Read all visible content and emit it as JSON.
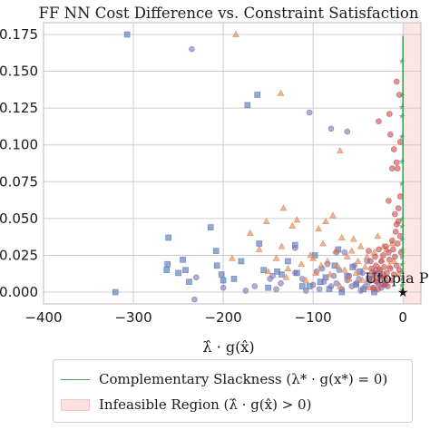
{
  "chart_data": {
    "type": "scatter",
    "title": "FF NN Cost Difference vs. Constraint Satisfaction",
    "xlabel": "λ̂ · g(x̂)",
    "ylabel": "",
    "xlim": [
      -400,
      20
    ],
    "ylim": [
      -0.008,
      0.183
    ],
    "x_ticks": [
      -400,
      -300,
      -200,
      -100,
      0
    ],
    "x_tick_labels": [
      "−400",
      "−300",
      "−200",
      "−100",
      "0"
    ],
    "y_ticks": [
      0.0,
      0.025,
      0.05,
      0.075,
      0.1,
      0.125,
      0.15,
      0.175
    ],
    "y_tick_labels": [
      "0.000",
      "0.025",
      "0.050",
      "0.075",
      "0.100",
      "0.125",
      "0.150",
      "0.175"
    ],
    "grid": true,
    "legend_position": "below",
    "colors": {
      "blue": "#4c72b0",
      "orange": "#dd8452",
      "red": "#c44e52",
      "purple": "#8172b3",
      "green": "#55a868",
      "line": "#4a9a5a",
      "region": "#fde0e0"
    },
    "complementary_slackness_line": {
      "x": 0
    },
    "infeasible_region": {
      "x_from": 0,
      "x_to": 20
    },
    "utopia_point": {
      "x": 0,
      "y": 0.0,
      "label": "Utopia P"
    },
    "legend": [
      {
        "label": "Complementary Slackness (λ* · g(x*) = 0)",
        "type": "line"
      },
      {
        "label": "Infeasible Region (λ̂ · g(x̂) > 0)",
        "type": "patch"
      }
    ],
    "series": [
      {
        "marker": "square",
        "color": "#4c72b0",
        "points": [
          [
            -307,
            0.175
          ],
          [
            -320,
            0.0
          ],
          [
            -262,
            0.019
          ],
          [
            -263,
            0.015
          ],
          [
            -261,
            0.037
          ],
          [
            -250,
            0.013
          ],
          [
            -245,
            0.022
          ],
          [
            -242,
            0.015
          ],
          [
            -238,
            0.007
          ],
          [
            -214,
            0.044
          ],
          [
            -208,
            0.028
          ],
          [
            -207,
            0.018
          ],
          [
            -202,
            0.012
          ],
          [
            -200,
            0.008
          ],
          [
            -188,
            0.009
          ],
          [
            -180,
            0.021
          ],
          [
            -173,
            0.127
          ],
          [
            -162,
            0.134
          ],
          [
            -160,
            0.033
          ],
          [
            -155,
            0.015
          ],
          [
            -150,
            0.003
          ],
          [
            -140,
            0.014
          ],
          [
            -135,
            0.012
          ],
          [
            -128,
            0.021
          ],
          [
            -120,
            0.032
          ],
          [
            -118,
            0.013
          ],
          [
            -112,
            0.004
          ],
          [
            -104,
            0.004
          ],
          [
            -98,
            0.025
          ],
          [
            -92,
            0.007
          ],
          [
            -86,
            0.01
          ],
          [
            -82,
            0.002
          ],
          [
            -76,
            0.018
          ],
          [
            -72,
            0.029
          ],
          [
            -68,
            0.0
          ],
          [
            -62,
            0.011
          ],
          [
            -56,
            0.017
          ],
          [
            -52,
            0.005
          ],
          [
            -48,
            0.014
          ],
          [
            -44,
            0.002
          ],
          [
            -38,
            0.009
          ],
          [
            -32,
            0.0
          ],
          [
            -26,
            0.012
          ],
          [
            -20,
            0.006
          ]
        ]
      },
      {
        "marker": "circle",
        "color": "#8172b3",
        "points": [
          [
            -235,
            0.165
          ],
          [
            -232,
            -0.005
          ],
          [
            -230,
            0.01
          ],
          [
            -200,
            0.003
          ],
          [
            -175,
            0.001
          ],
          [
            -165,
            0.004
          ],
          [
            -148,
            0.009
          ],
          [
            -141,
            0.002
          ],
          [
            -136,
            0.006
          ],
          [
            -120,
            0.013
          ],
          [
            -112,
            0.009
          ],
          [
            -108,
            0.001
          ],
          [
            -104,
            0.122
          ],
          [
            -100,
            0.005
          ],
          [
            -96,
            0.014
          ],
          [
            -93,
            0.002
          ],
          [
            -90,
            0.016
          ],
          [
            -88,
            0.007
          ],
          [
            -84,
            0.019
          ],
          [
            -80,
            0.111
          ],
          [
            -80,
            0.004
          ],
          [
            -77,
            0.011
          ],
          [
            -74,
            0.006
          ],
          [
            -71,
            0.015
          ],
          [
            -68,
            0.002
          ],
          [
            -65,
            0.027
          ],
          [
            -62,
            0.008
          ],
          [
            -60,
            0.011
          ],
          [
            -57,
            0.004
          ],
          [
            -54,
            0.018
          ],
          [
            -52,
            0.006
          ],
          [
            -49,
            0.009
          ],
          [
            -47,
            0.001
          ],
          [
            -45,
            0.013
          ],
          [
            -42,
            0.004
          ],
          [
            -40,
            0.021
          ],
          [
            -38,
            0.007
          ],
          [
            -35,
            0.011
          ],
          [
            -33,
            0.002
          ],
          [
            -30,
            0.015
          ],
          [
            -28,
            0.006
          ],
          [
            -26,
            0.009
          ],
          [
            -24,
            0.003
          ],
          [
            -22,
            0.012
          ],
          [
            -20,
            0.005
          ],
          [
            -62,
            0.109
          ],
          [
            -74,
            0.027
          ],
          [
            -120,
            0.03
          ],
          [
            -145,
            0.011
          ]
        ]
      },
      {
        "marker": "triangle",
        "color": "#dd8452",
        "points": [
          [
            -186,
            0.175
          ],
          [
            -190,
            0.023
          ],
          [
            -170,
            0.04
          ],
          [
            -160,
            0.029
          ],
          [
            -152,
            0.048
          ],
          [
            -150,
            0.014
          ],
          [
            -141,
            0.023
          ],
          [
            -135,
            0.031
          ],
          [
            -133,
            0.057
          ],
          [
            -130,
            0.01
          ],
          [
            -128,
            0.016
          ],
          [
            -123,
            0.045
          ],
          [
            -118,
            0.049
          ],
          [
            -113,
            0.019
          ],
          [
            -108,
            0.008
          ],
          [
            -103,
            0.025
          ],
          [
            -100,
            0.023
          ],
          [
            -97,
            0.013
          ],
          [
            -94,
            0.043
          ],
          [
            -91,
            0.018
          ],
          [
            -89,
            0.033
          ],
          [
            -86,
            0.048
          ],
          [
            -84,
            0.021
          ],
          [
            -81,
            0.012
          ],
          [
            -78,
            0.052
          ],
          [
            -75,
            0.028
          ],
          [
            -73,
            0.018
          ],
          [
            -70,
            0.004
          ],
          [
            -68,
            0.037
          ],
          [
            -65,
            0.015
          ],
          [
            -62,
            0.024
          ],
          [
            -60,
            0.009
          ],
          [
            -57,
            0.028
          ],
          [
            -55,
            0.036
          ],
          [
            -52,
            0.013
          ],
          [
            -50,
            0.021
          ],
          [
            -47,
            0.031
          ],
          [
            -45,
            0.008
          ],
          [
            -42,
            0.017
          ],
          [
            -40,
            0.024
          ],
          [
            -37,
            0.003
          ],
          [
            -35,
            0.014
          ],
          [
            -32,
            0.027
          ],
          [
            -30,
            0.009
          ],
          [
            -28,
            0.038
          ],
          [
            -26,
            0.016
          ],
          [
            -24,
            0.022
          ],
          [
            -22,
            0.031
          ],
          [
            -20,
            0.011
          ],
          [
            -18,
            0.029
          ],
          [
            -15,
            0.018
          ],
          [
            -12,
            0.033
          ],
          [
            -10,
            0.021
          ],
          [
            -5,
            0.012
          ],
          [
            -70,
            0.096
          ],
          [
            -136,
            0.135
          ]
        ]
      },
      {
        "marker": "circle",
        "color": "#c44e52",
        "points": [
          [
            -38,
            0.028
          ],
          [
            -36,
            0.021
          ],
          [
            -35,
            0.016
          ],
          [
            -34,
            0.009
          ],
          [
            -33,
            0.003
          ],
          [
            -32,
            0.013
          ],
          [
            -31,
            0.024
          ],
          [
            -30,
            0.018
          ],
          [
            -29,
            0.007
          ],
          [
            -28,
            0.002
          ],
          [
            -27,
            0.029
          ],
          [
            -26,
            0.015
          ],
          [
            -25,
            0.011
          ],
          [
            -24,
            0.021
          ],
          [
            -23,
            0.005
          ],
          [
            -22,
            0.025
          ],
          [
            -21,
            0.017
          ],
          [
            -20,
            0.009
          ],
          [
            -19,
            0.031
          ],
          [
            -18,
            0.013
          ],
          [
            -17,
            0.004
          ],
          [
            -16,
            0.027
          ],
          [
            -15,
            0.022
          ],
          [
            -14,
            0.016
          ],
          [
            -13,
            0.008
          ],
          [
            -12,
            0.035
          ],
          [
            -11,
            0.029
          ],
          [
            -10,
            0.012
          ],
          [
            -9,
            0.024
          ],
          [
            -8,
            0.041
          ],
          [
            -7,
            0.018
          ],
          [
            -6,
            0.033
          ],
          [
            -5,
            0.048
          ],
          [
            -4,
            0.015
          ],
          [
            -3,
            0.038
          ],
          [
            -2,
            0.027
          ],
          [
            -9,
            0.053
          ],
          [
            -7,
            0.046
          ],
          [
            -5,
            0.057
          ],
          [
            -3,
            0.065
          ],
          [
            -6,
            0.084
          ],
          [
            -7,
            0.088
          ],
          [
            -27,
            0.116
          ],
          [
            -15,
            0.121
          ],
          [
            -12,
            0.084
          ],
          [
            -7,
            0.143
          ],
          [
            -4,
            0.134
          ],
          [
            -3,
            0.102
          ],
          [
            -10,
            0.097
          ],
          [
            -14,
            0.107
          ],
          [
            -16,
            0.062
          ]
        ]
      },
      {
        "marker": "star",
        "color": "#55a868",
        "points": [
          [
            -1,
            0.157
          ],
          [
            -1,
            0.134
          ],
          [
            -1,
            0.126
          ],
          [
            -1,
            0.12
          ],
          [
            -1,
            0.106
          ],
          [
            -1,
            0.089
          ],
          [
            -1,
            0.074
          ],
          [
            -1,
            0.05
          ],
          [
            -1,
            0.045
          ],
          [
            -1,
            0.036
          ],
          [
            -1,
            0.029
          ],
          [
            -1,
            0.024
          ],
          [
            -1,
            0.019
          ],
          [
            -1,
            0.014
          ],
          [
            -1,
            0.009
          ],
          [
            -1,
            0.005
          ],
          [
            -1,
            0.002
          ]
        ]
      }
    ]
  }
}
